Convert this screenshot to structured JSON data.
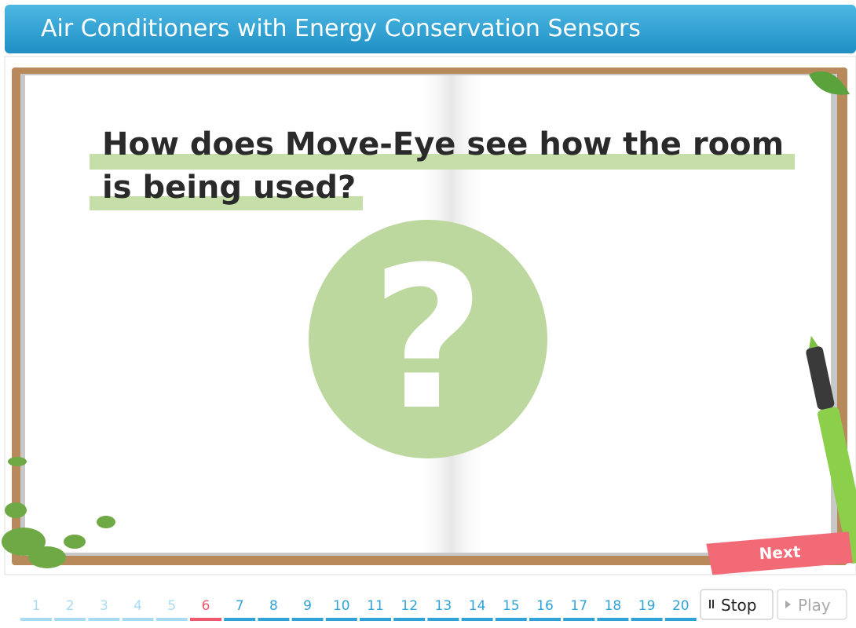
{
  "header": {
    "title": "Air Conditioners with Energy Conservation Sensors"
  },
  "slide": {
    "question_lines": [
      "How does Move-Eye see how the room",
      "is being used?"
    ],
    "symbol": "?",
    "next_button": "Next"
  },
  "pagination": {
    "pages": [
      1,
      2,
      3,
      4,
      5,
      6,
      7,
      8,
      9,
      10,
      11,
      12,
      13,
      14,
      15,
      16,
      17,
      18,
      19,
      20
    ],
    "current": 6,
    "stop_button": "Stop",
    "play_button": "Play"
  }
}
